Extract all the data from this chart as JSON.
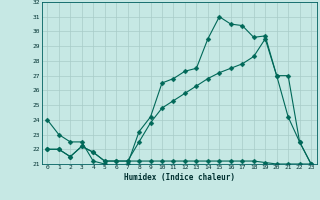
{
  "xlabel": "Humidex (Indice chaleur)",
  "background_color": "#c6e8e4",
  "grid_color": "#a8ccc8",
  "line_color": "#006858",
  "xlim": [
    -0.5,
    23.5
  ],
  "ylim": [
    21,
    32
  ],
  "xticks": [
    0,
    1,
    2,
    3,
    4,
    5,
    6,
    7,
    8,
    9,
    10,
    11,
    12,
    13,
    14,
    15,
    16,
    17,
    18,
    19,
    20,
    21,
    22,
    23
  ],
  "yticks": [
    21,
    22,
    23,
    24,
    25,
    26,
    27,
    28,
    29,
    30,
    31,
    32
  ],
  "line1_x": [
    0,
    1,
    2,
    3,
    4,
    5,
    6,
    7,
    8,
    9,
    10,
    11,
    12,
    13,
    14,
    15,
    16,
    17,
    18,
    19,
    20,
    21,
    22,
    23
  ],
  "line1_y": [
    24.0,
    23.0,
    22.5,
    22.5,
    21.2,
    21.0,
    20.85,
    21.0,
    23.2,
    24.2,
    26.5,
    26.8,
    27.3,
    27.5,
    29.5,
    31.0,
    30.5,
    30.4,
    29.6,
    29.7,
    27.0,
    24.2,
    22.5,
    21.0
  ],
  "line2_x": [
    0,
    1,
    2,
    3,
    4,
    5,
    6,
    7,
    8,
    9,
    10,
    11,
    12,
    13,
    14,
    15,
    16,
    17,
    18,
    19,
    20,
    21,
    22,
    23
  ],
  "line2_y": [
    22.0,
    22.0,
    21.5,
    22.2,
    21.8,
    21.2,
    21.2,
    21.2,
    21.2,
    21.2,
    21.2,
    21.2,
    21.2,
    21.2,
    21.2,
    21.2,
    21.2,
    21.2,
    21.2,
    21.1,
    21.0,
    21.0,
    21.0,
    21.0
  ],
  "line3_x": [
    0,
    1,
    2,
    3,
    4,
    5,
    6,
    7,
    8,
    9,
    10,
    11,
    12,
    13,
    14,
    15,
    16,
    17,
    18,
    19,
    20,
    21,
    22,
    23
  ],
  "line3_y": [
    22.0,
    22.0,
    21.5,
    22.2,
    21.8,
    21.2,
    21.2,
    21.2,
    22.5,
    23.8,
    24.8,
    25.3,
    25.8,
    26.3,
    26.8,
    27.2,
    27.5,
    27.8,
    28.3,
    29.5,
    27.0,
    27.0,
    22.5,
    21.0
  ]
}
